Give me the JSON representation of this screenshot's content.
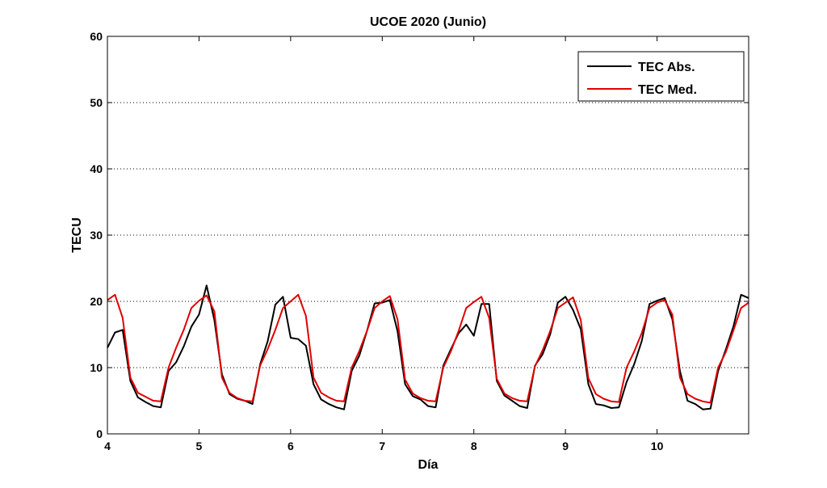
{
  "chart_data": {
    "type": "line",
    "title": "UCOE 2020 (Junio)",
    "xlabel": "Día",
    "ylabel": "TECU",
    "xlim": [
      4,
      11
    ],
    "ylim": [
      0,
      60
    ],
    "xticks": [
      4,
      5,
      6,
      7,
      8,
      9,
      10
    ],
    "yticks": [
      0,
      10,
      20,
      30,
      40,
      50,
      60
    ],
    "grid": "horizontal dotted",
    "legend_position": "top-right",
    "series": [
      {
        "name": "TEC Abs.",
        "color": "#000000",
        "x": [
          4.0,
          4.083,
          4.167,
          4.25,
          4.333,
          4.417,
          4.5,
          4.583,
          4.667,
          4.75,
          4.833,
          4.917,
          5.0,
          5.083,
          5.167,
          5.25,
          5.333,
          5.417,
          5.5,
          5.583,
          5.667,
          5.75,
          5.833,
          5.917,
          6.0,
          6.083,
          6.167,
          6.25,
          6.333,
          6.417,
          6.5,
          6.583,
          6.667,
          6.75,
          6.833,
          6.917,
          7.0,
          7.083,
          7.167,
          7.25,
          7.333,
          7.417,
          7.5,
          7.583,
          7.667,
          7.75,
          7.833,
          7.917,
          8.0,
          8.083,
          8.167,
          8.25,
          8.333,
          8.417,
          8.5,
          8.583,
          8.667,
          8.75,
          8.833,
          8.917,
          9.0,
          9.083,
          9.167,
          9.25,
          9.333,
          9.417,
          9.5,
          9.583,
          9.667,
          9.75,
          9.833,
          9.917,
          10.0,
          10.083,
          10.167,
          10.25,
          10.333,
          10.417,
          10.5,
          10.583,
          10.667,
          10.75,
          10.833,
          10.917,
          11.0
        ],
        "values": [
          13,
          15.3,
          15.7,
          8,
          5.5,
          4.8,
          4.2,
          4,
          9.5,
          10.8,
          13.2,
          16.2,
          18,
          22.4,
          17.2,
          9,
          6,
          5.3,
          5,
          4.5,
          10.5,
          14,
          19.5,
          20.7,
          14.5,
          14.3,
          13.3,
          7.5,
          5.2,
          4.5,
          4,
          3.7,
          9.5,
          11.8,
          15.5,
          19.7,
          19.8,
          20.2,
          15.5,
          7.5,
          5.7,
          5.2,
          4.2,
          4,
          10.3,
          12.8,
          15.2,
          16.5,
          14.8,
          19.6,
          19.6,
          8,
          5.8,
          5,
          4.2,
          3.9,
          10.3,
          12,
          15,
          19.8,
          20.7,
          18.7,
          15.8,
          7.5,
          4.5,
          4.3,
          3.9,
          4,
          7.8,
          10.5,
          14,
          19.6,
          20.1,
          20.5,
          17.3,
          9.5,
          5,
          4.5,
          3.7,
          3.8,
          9.5,
          12.7,
          16.2,
          21,
          20.5
        ]
      },
      {
        "name": "TEC Med.",
        "color": "#e00000",
        "x": [
          4.0,
          4.083,
          4.167,
          4.25,
          4.333,
          4.417,
          4.5,
          4.583,
          4.667,
          4.75,
          4.833,
          4.917,
          5.0,
          5.083,
          5.167,
          5.25,
          5.333,
          5.417,
          5.5,
          5.583,
          5.667,
          5.75,
          5.833,
          5.917,
          6.0,
          6.083,
          6.167,
          6.25,
          6.333,
          6.417,
          6.5,
          6.583,
          6.667,
          6.75,
          6.833,
          6.917,
          7.0,
          7.083,
          7.167,
          7.25,
          7.333,
          7.417,
          7.5,
          7.583,
          7.667,
          7.75,
          7.833,
          7.917,
          8.0,
          8.083,
          8.167,
          8.25,
          8.333,
          8.417,
          8.5,
          8.583,
          8.667,
          8.75,
          8.833,
          8.917,
          9.0,
          9.083,
          9.167,
          9.25,
          9.333,
          9.417,
          9.5,
          9.583,
          9.667,
          9.75,
          9.833,
          9.917,
          10.0,
          10.083,
          10.167,
          10.25,
          10.333,
          10.417,
          10.5,
          10.583,
          10.667,
          10.75,
          10.833,
          10.917,
          11.0
        ],
        "values": [
          20.2,
          21,
          17.5,
          8.5,
          6.2,
          5.6,
          5,
          4.9,
          10,
          13,
          15.7,
          19,
          20.1,
          20.9,
          18.5,
          8.5,
          6.2,
          5.4,
          5,
          4.9,
          10.3,
          12.8,
          15.7,
          19,
          20,
          21,
          17.8,
          8.5,
          6.2,
          5.5,
          5,
          4.9,
          10,
          12.5,
          15.5,
          19,
          20,
          20.8,
          17.3,
          8.2,
          6.1,
          5.4,
          5,
          4.9,
          10,
          12.5,
          15.5,
          19,
          19.9,
          20.7,
          17.5,
          8.3,
          6.1,
          5.4,
          5,
          4.9,
          10.2,
          12.6,
          15.5,
          19,
          19.8,
          20.6,
          17.2,
          8.4,
          6,
          5.3,
          4.9,
          4.8,
          10,
          12.4,
          15.2,
          19,
          19.8,
          20.2,
          18,
          8.5,
          6,
          5.3,
          4.9,
          4.7,
          10,
          12.3,
          15.6,
          19,
          19.8
        ]
      }
    ]
  }
}
